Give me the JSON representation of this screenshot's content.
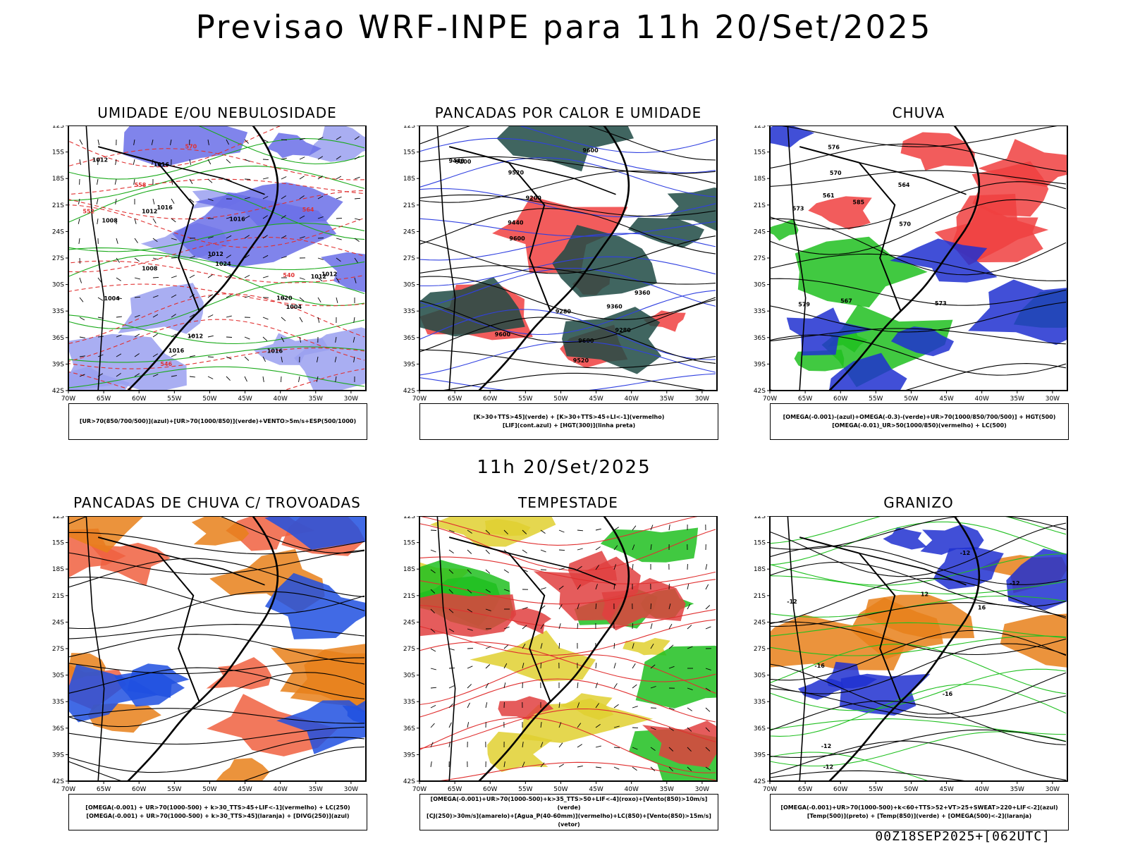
{
  "header": {
    "title": "Previsao WRF-INPE  para 11h 20/Set/2025"
  },
  "middle": {
    "title": "11h 20/Set/2025"
  },
  "footer": {
    "run": "00Z18SEP2025+[062UTC]"
  },
  "axes": {
    "lat_labels": [
      "12S",
      "15S",
      "18S",
      "21S",
      "24S",
      "27S",
      "30S",
      "33S",
      "36S",
      "39S",
      "42S"
    ],
    "lon_labels": [
      "70W",
      "65W",
      "60W",
      "55W",
      "50W",
      "45W",
      "40W",
      "35W",
      "30W"
    ]
  },
  "panels": [
    {
      "id": "umidade",
      "title": "UMIDADE E/OU NEBULOSIDADE",
      "legend": [
        "[UR>70(850/700/500)](azul)+[UR>70(1000/850)](verde)+VENTO>5m/s+ESP(500/1000)"
      ],
      "labels": [
        "1012",
        "1016",
        "1012",
        "1020",
        "1008",
        "1004",
        "1012",
        "1016",
        "1024",
        "1008",
        "1004",
        "1012",
        "1016",
        "1012",
        "1016",
        "1016",
        "1012",
        "570",
        "564",
        "558",
        "552",
        "546",
        "540"
      ]
    },
    {
      "id": "pancadas-calor",
      "title": "PANCADAS POR CALOR E UMIDADE",
      "legend": [
        "[K>30+TTS>45](verde) + [K>30+TTS>45+LI<-1](vermelho)",
        "[LIF](cont.azul) + [HGT(300)](linha preta)"
      ],
      "labels": [
        "9600",
        "9600",
        "9600",
        "9600",
        "9520",
        "9520",
        "9440",
        "9440",
        "9360",
        "9360",
        "9280",
        "9280",
        "9200",
        "9200"
      ]
    },
    {
      "id": "chuva",
      "title": "CHUVA",
      "legend": [
        "[OMEGA(-0.001)-(azul)+OMEGA(-0.3)-(verde)+UR>70(1000/850/700/500)] + HGT(500)",
        "[OMEGA(-0.01)_UR>50(1000/850)(vermelho) + LC(500)"
      ],
      "labels": [
        "585",
        "579",
        "576",
        "573",
        "570",
        "567",
        "564",
        "561",
        "573",
        "570"
      ]
    },
    {
      "id": "pancadas-trovoadas",
      "title": "PANCADAS DE CHUVA C/ TROVOADAS",
      "legend": [
        "[OMEGA(-0.001) + UR>70(1000-500) + k>30_TTS>45+LIF<-1](vermelho) + LC(250)",
        "[OMEGA(-0.001) + UR>70(1000-500) + k>30_TTS>45](laranja) + [DIVG(250)](azul)"
      ],
      "labels": []
    },
    {
      "id": "tempestade",
      "title": "TEMPESTADE",
      "legend": [
        "[OMEGA(-0.001)+UR>70(1000-500)+k>35_TTS>50+LIF<-4](roxo)+[Vento(850)>10m/s](verde)",
        "[CJ(250)>30m/s](amarelo)+[Agua_P(40-60mm)](vermelho)+LC(850)+[Vento(850)>15m/s](vetor)"
      ],
      "labels": []
    },
    {
      "id": "granizo",
      "title": "GRANIZO",
      "legend": [
        "[OMEGA(-0.001)+UR>70(1000-500)+k<60+TTS>52+VT>25+SWEAT>220+LIF<-2](azul)",
        "[Temp(500)](preto) + [Temp(850)](verde) + [OMEGA(500)<-2](laranja)"
      ],
      "labels": [
        "-12",
        "-12",
        "-12",
        "-12",
        "-16",
        "-16",
        "16",
        "12",
        "-12"
      ]
    }
  ]
}
